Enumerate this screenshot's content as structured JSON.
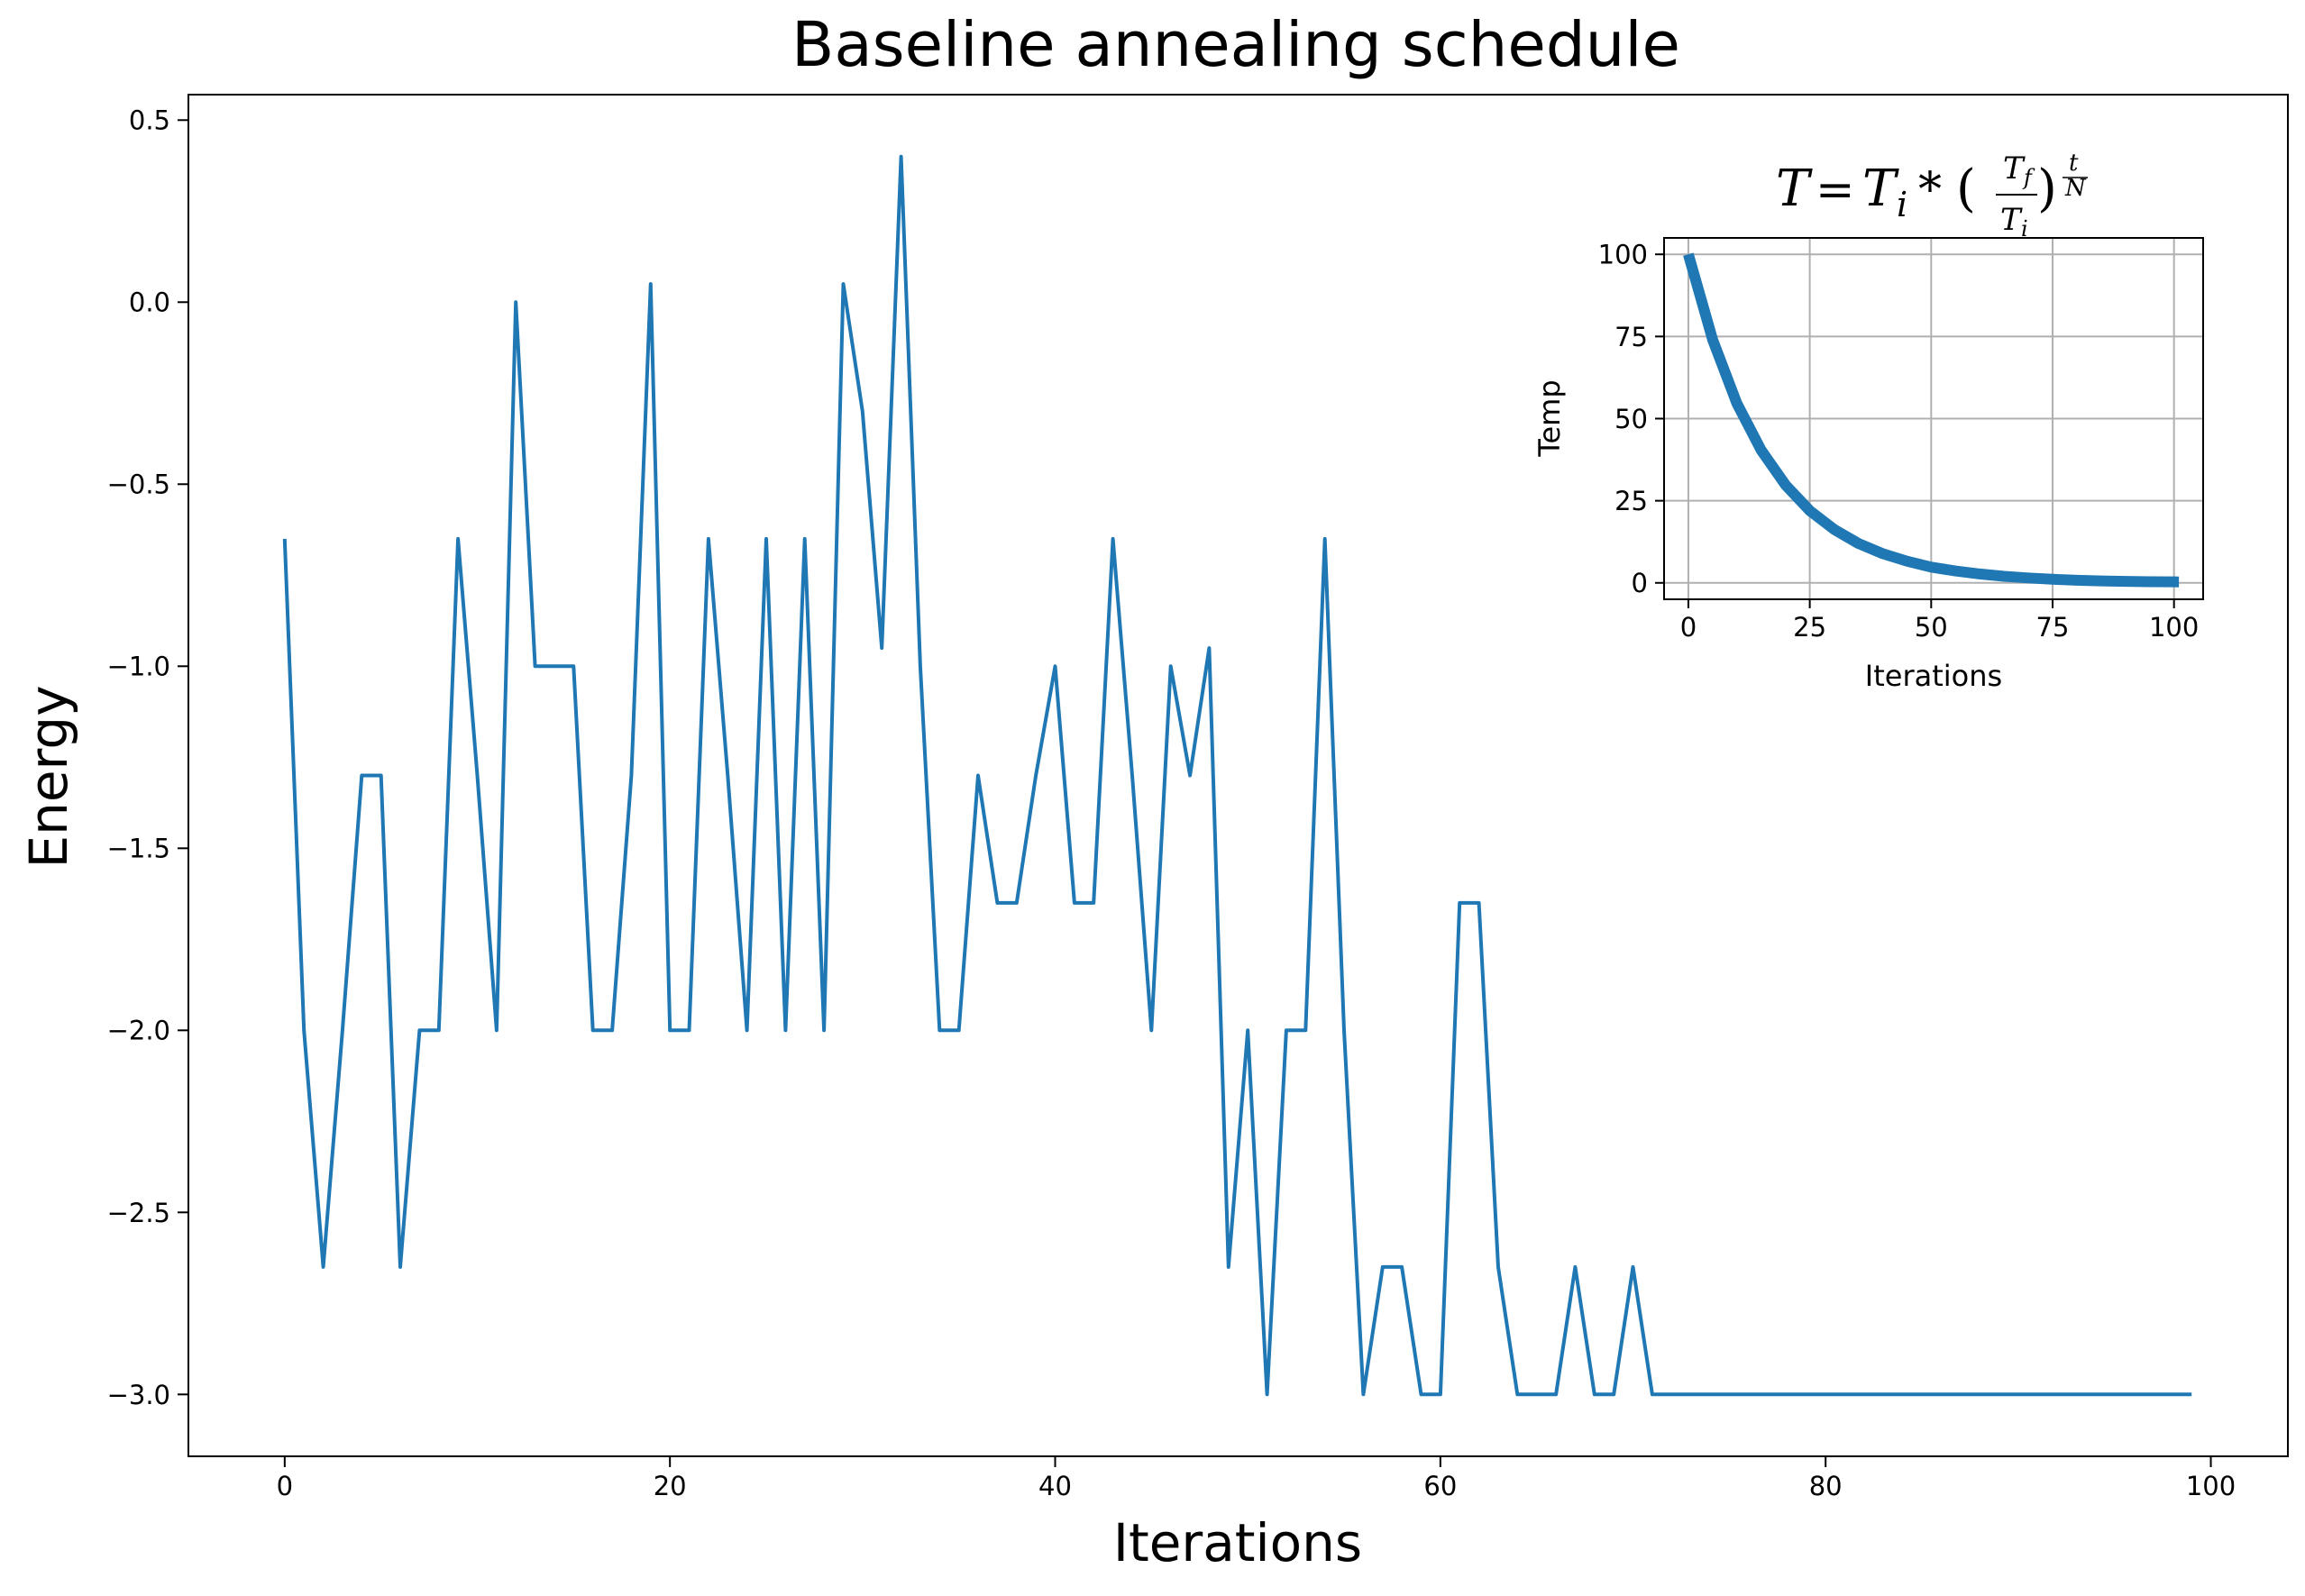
{
  "colors": {
    "line": "#1f77b4",
    "grid": "#b0b0b0",
    "axis": "#000000",
    "background": "#ffffff"
  },
  "chart_data": [
    {
      "type": "line",
      "title": "Baseline annealing schedule",
      "xlabel": "Iterations",
      "ylabel": "Energy",
      "xlim": [
        -5,
        104
      ],
      "ylim": [
        -3.17,
        0.57
      ],
      "xticks": [
        0,
        20,
        40,
        60,
        80,
        100
      ],
      "xtick_labels": [
        "0",
        "20",
        "40",
        "60",
        "80",
        "100"
      ],
      "yticks": [
        0.5,
        0.0,
        -0.5,
        -1.0,
        -1.5,
        -2.0,
        -2.5,
        -3.0
      ],
      "ytick_labels": [
        "0.5",
        "0.0",
        "−0.5",
        "−1.0",
        "−1.5",
        "−2.0",
        "−2.5",
        "−3.0"
      ],
      "grid": false,
      "series": [
        {
          "x": [
            0,
            1,
            2,
            3,
            4,
            5,
            6,
            7,
            8,
            9,
            10,
            11,
            12,
            13,
            14,
            15,
            16,
            17,
            18,
            19,
            20,
            21,
            22,
            23,
            24,
            25,
            26,
            27,
            28,
            29,
            30,
            31,
            32,
            33,
            34,
            35,
            36,
            37,
            38,
            39,
            40,
            41,
            42,
            43,
            44,
            45,
            46,
            47,
            48,
            49,
            50,
            51,
            52,
            53,
            54,
            55,
            56,
            57,
            58,
            59,
            60,
            61,
            62,
            63,
            64,
            65,
            66,
            67,
            68,
            69,
            70,
            71,
            72,
            73,
            74,
            75,
            76,
            77,
            78,
            79,
            80,
            81,
            82,
            83,
            84,
            85,
            86,
            87,
            88,
            89,
            90,
            91,
            92,
            93,
            94,
            95,
            96,
            97,
            98,
            99
          ],
          "y": [
            -0.65,
            -2.0,
            -2.65,
            -2.0,
            -1.3,
            -1.3,
            -2.65,
            -2.0,
            -2.0,
            -0.65,
            -1.3,
            -2.0,
            0.0,
            -1.0,
            -1.0,
            -1.0,
            -2.0,
            -2.0,
            -1.3,
            0.05,
            -2.0,
            -2.0,
            -0.65,
            -1.3,
            -2.0,
            -0.65,
            -2.0,
            -0.65,
            -2.0,
            0.05,
            -0.3,
            -0.95,
            0.4,
            -1.0,
            -2.0,
            -2.0,
            -1.3,
            -1.65,
            -1.65,
            -1.3,
            -1.0,
            -1.65,
            -1.65,
            -0.65,
            -1.3,
            -2.0,
            -1.0,
            -1.3,
            -0.95,
            -2.65,
            -2.0,
            -3.0,
            -2.0,
            -2.0,
            -0.65,
            -2.0,
            -3.0,
            -2.65,
            -2.65,
            -3.0,
            -3.0,
            -1.65,
            -1.65,
            -2.65,
            -3.0,
            -3.0,
            -3.0,
            -2.65,
            -3.0,
            -3.0,
            -2.65,
            -3.0,
            -3.0,
            -3.0,
            -3.0,
            -3.0,
            -3.0,
            -3.0,
            -3.0,
            -3.0,
            -3.0,
            -3.0,
            -3.0,
            -3.0,
            -3.0,
            -3.0,
            -3.0,
            -3.0,
            -3.0,
            -3.0,
            -3.0,
            -3.0,
            -3.0,
            -3.0,
            -3.0,
            -3.0,
            -3.0,
            -3.0,
            -3.0,
            -3.0
          ]
        }
      ]
    },
    {
      "type": "line",
      "title_formula": "T = T_i * (T_f / T_i)^(t/N)",
      "xlabel": "Iterations",
      "ylabel": "Temp",
      "xlim": [
        -5,
        106
      ],
      "ylim": [
        -5,
        105
      ],
      "xticks": [
        0,
        25,
        50,
        75,
        100
      ],
      "xtick_labels": [
        "0",
        "25",
        "50",
        "75",
        "100"
      ],
      "yticks": [
        0,
        25,
        50,
        75,
        100
      ],
      "ytick_labels": [
        "0",
        "25",
        "50",
        "75",
        "100"
      ],
      "grid": true,
      "series": [
        {
          "x": [
            0,
            5,
            10,
            15,
            20,
            25,
            30,
            35,
            40,
            45,
            50,
            55,
            60,
            65,
            70,
            75,
            80,
            85,
            90,
            95,
            101
          ],
          "y": [
            100,
            74.0,
            54.6,
            40.4,
            29.8,
            22.0,
            16.3,
            12.0,
            8.9,
            6.6,
            4.8,
            3.6,
            2.7,
            2.0,
            1.5,
            1.1,
            0.8,
            0.6,
            0.45,
            0.35,
            0.3
          ]
        }
      ]
    }
  ]
}
